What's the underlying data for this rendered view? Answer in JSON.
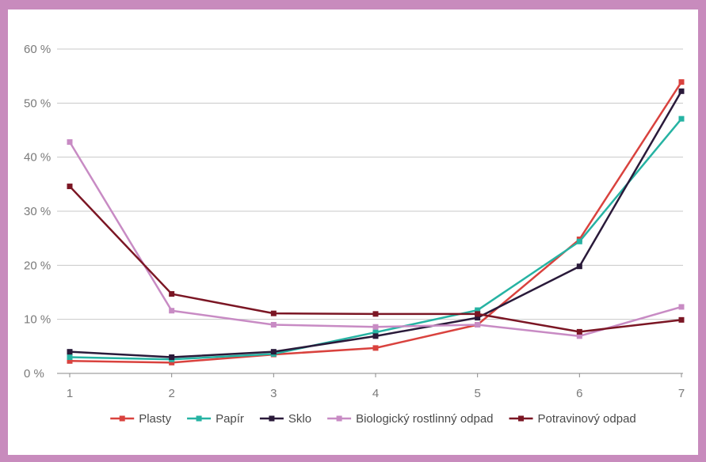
{
  "chart_data": {
    "type": "line",
    "x": [
      1,
      2,
      3,
      4,
      5,
      6,
      7
    ],
    "ylim": [
      0,
      60
    ],
    "yticks": [
      0,
      10,
      20,
      30,
      40,
      50,
      60
    ],
    "ytick_labels": [
      "0 %",
      "10 %",
      "20 %",
      "30 %",
      "40 %",
      "50 %",
      "60 %"
    ],
    "xtick_labels": [
      "1",
      "2",
      "3",
      "4",
      "5",
      "6",
      "7"
    ],
    "grid": "horizontal",
    "legend_position": "bottom",
    "series": [
      {
        "name": "Plasty",
        "color": "#d9423e",
        "values": [
          2.3,
          2.0,
          3.5,
          4.7,
          9.0,
          24.8,
          53.9
        ]
      },
      {
        "name": "Papír",
        "color": "#26b3a3",
        "values": [
          3.0,
          2.6,
          3.6,
          7.6,
          11.7,
          24.4,
          47.1
        ]
      },
      {
        "name": "Sklo",
        "color": "#2a1a3a",
        "values": [
          4.0,
          3.0,
          4.0,
          6.9,
          10.3,
          19.8,
          52.2
        ]
      },
      {
        "name": "Biologický rostlinný odpad",
        "color": "#c88bc4",
        "values": [
          42.8,
          11.6,
          9.0,
          8.6,
          9.0,
          6.9,
          12.3
        ]
      },
      {
        "name": "Potravinový odpad",
        "color": "#7b1624",
        "values": [
          34.6,
          14.7,
          11.1,
          11.0,
          11.0,
          7.7,
          9.9
        ]
      }
    ]
  }
}
